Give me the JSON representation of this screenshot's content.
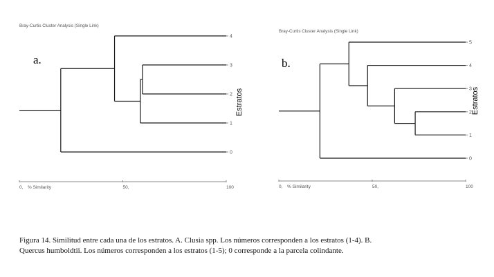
{
  "chart_data": [
    {
      "type": "dendrogram",
      "panel_label": "a.",
      "title": "Bray-Curtis Cluster Analysis (Single Link)",
      "xlabel": "% Similarity",
      "ylabel": "Estratos",
      "xlim": [
        0,
        100
      ],
      "xticks": [
        {
          "value": 0,
          "label": "0,"
        },
        {
          "value": 50,
          "label": "50,"
        },
        {
          "value": 100,
          "label": "100"
        }
      ],
      "leaf_order": [
        "4",
        "3",
        "2",
        "1",
        "0"
      ],
      "tree": {
        "similarity": 20,
        "children": [
          {
            "similarity": 46,
            "children": [
              {
                "leaf": "4"
              },
              {
                "similarity": 58.5,
                "children": [
                  {
                    "similarity": 59.5,
                    "children": [
                      {
                        "leaf": "3"
                      },
                      {
                        "leaf": "2"
                      }
                    ]
                  },
                  {
                    "leaf": "1"
                  }
                ]
              }
            ]
          },
          {
            "leaf": "0"
          }
        ]
      }
    },
    {
      "type": "dendrogram",
      "panel_label": "b.",
      "title": "Bray-Curtis Cluster Analysis (Single Link)",
      "xlabel": "% Similarity",
      "ylabel": "Estratos",
      "xlim": [
        0,
        100
      ],
      "xticks": [
        {
          "value": 0,
          "label": "0,"
        },
        {
          "value": 50,
          "label": "50,"
        },
        {
          "value": 100,
          "label": "100"
        }
      ],
      "leaf_order": [
        "5",
        "4",
        "3",
        "2",
        "1",
        "0"
      ],
      "tree": {
        "similarity": 22,
        "children": [
          {
            "similarity": 37.5,
            "children": [
              {
                "leaf": "5"
              },
              {
                "similarity": 47.5,
                "children": [
                  {
                    "leaf": "4"
                  },
                  {
                    "similarity": 62,
                    "children": [
                      {
                        "leaf": "3"
                      },
                      {
                        "similarity": 73,
                        "children": [
                          {
                            "leaf": "2"
                          },
                          {
                            "leaf": "1"
                          }
                        ]
                      }
                    ]
                  }
                ]
              }
            ]
          },
          {
            "leaf": "0"
          }
        ]
      }
    }
  ],
  "caption": "Figura 14. Similitud entre cada una de los estratos. A. Clusia spp. Los números corresponden a los estratos (1-4). B. Quercus humboldtii. Los números corresponden a los estratos (1-5); 0 corresponde a la parcela colindante.",
  "colors": {
    "lines": "#1a1a1a",
    "axis": "#888888",
    "text": "#555555"
  }
}
